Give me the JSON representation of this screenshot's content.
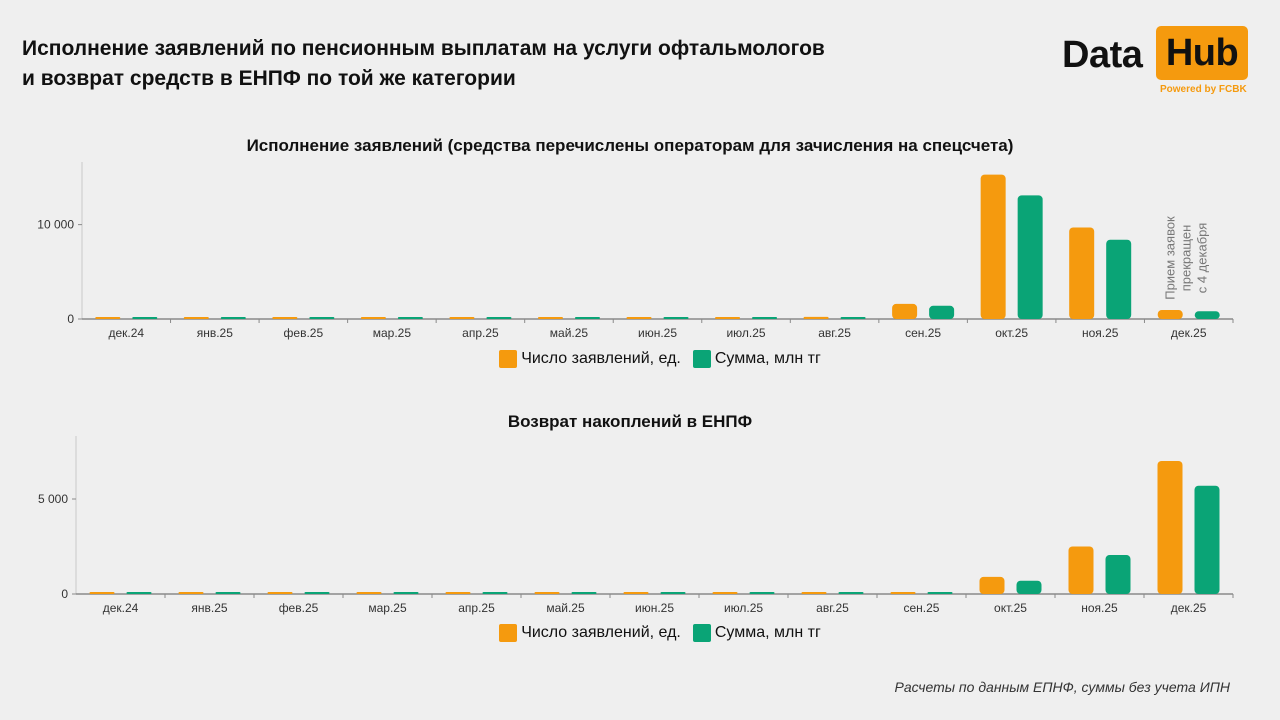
{
  "header": {
    "title_line1": "Исполнение заявлений по пенсионным выплатам на услуги офтальмологов",
    "title_line2": "и возврат средств в ЕНПФ по той же категории"
  },
  "logo": {
    "word1": "Data",
    "word2": "Hub",
    "tagline": "Powered by FCBK",
    "accent_color": "#f59a0e"
  },
  "chart_data": [
    {
      "type": "bar",
      "title": "Исполнение заявлений (средства перечислены операторам для зачисления на спецсчета)",
      "categories": [
        "дек.24",
        "янв.25",
        "фев.25",
        "мар.25",
        "апр.25",
        "май.25",
        "июн.25",
        "июл.25",
        "авг.25",
        "сен.25",
        "окт.25",
        "ноя.25",
        "дек.25"
      ],
      "series": [
        {
          "name": "Число заявлений, ед.",
          "color": "#f59a0e",
          "values": [
            150,
            130,
            140,
            110,
            120,
            100,
            130,
            180,
            220,
            1600,
            15300,
            9700,
            950
          ]
        },
        {
          "name": "Сумма, млн тг",
          "color": "#0aa476",
          "values": [
            120,
            110,
            120,
            100,
            100,
            90,
            110,
            150,
            190,
            1400,
            13100,
            8400,
            820
          ]
        }
      ],
      "yticks": [
        0,
        10000
      ],
      "ytick_labels": [
        "0",
        "10 000"
      ],
      "ylim": [
        0,
        16000
      ],
      "annotation": {
        "category": "дек.25",
        "lines": [
          "Прием заявок",
          "прекращен",
          "с 4 декабря"
        ]
      },
      "legend": "bottom-center"
    },
    {
      "type": "bar",
      "title": "Возврат накоплений в ЕНПФ",
      "categories": [
        "дек.24",
        "янв.25",
        "фев.25",
        "мар.25",
        "апр.25",
        "май.25",
        "июн.25",
        "июл.25",
        "авг.25",
        "сен.25",
        "окт.25",
        "ноя.25",
        "дек.25"
      ],
      "series": [
        {
          "name": "Число заявлений, ед.",
          "color": "#f59a0e",
          "values": [
            10,
            10,
            10,
            5,
            5,
            5,
            10,
            20,
            60,
            50,
            900,
            2500,
            7000
          ]
        },
        {
          "name": "Сумма, млн тг",
          "color": "#0aa476",
          "values": [
            8,
            8,
            8,
            4,
            4,
            4,
            8,
            15,
            30,
            30,
            700,
            2050,
            5700
          ]
        }
      ],
      "yticks": [
        0,
        5000
      ],
      "ytick_labels": [
        "0",
        "5 000"
      ],
      "ylim": [
        0,
        8000
      ],
      "legend": "bottom-center"
    }
  ],
  "footer": {
    "note": "Расчеты по данным ЕПНФ, суммы без учета ИПН"
  }
}
